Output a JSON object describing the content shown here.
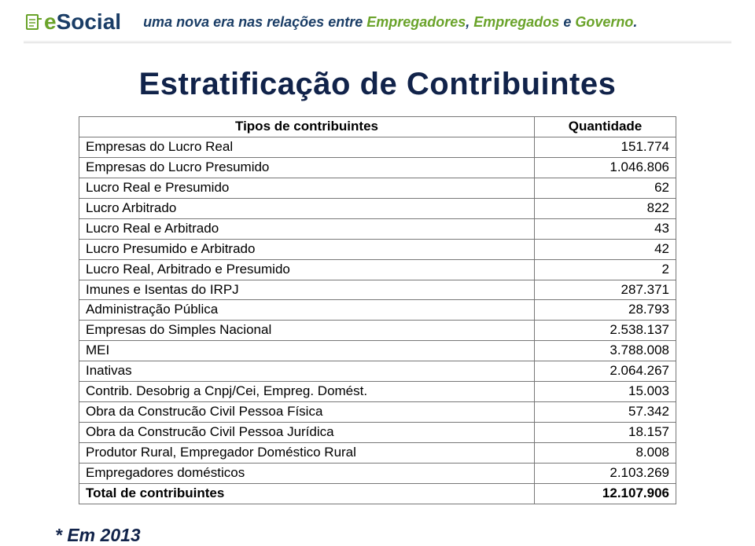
{
  "colors": {
    "brand_green": "#6aa32a",
    "brand_navy": "#1a3d66",
    "tagline_text": "#1a3d66",
    "tagline_highlight": "#6aa32a",
    "title_color": "#11234a",
    "table_text": "#333333",
    "border_color": "#777777",
    "footnote_color": "#11234a"
  },
  "logo": {
    "e": "e",
    "social": "Social"
  },
  "tagline": {
    "part1": "uma nova era nas relações entre ",
    "h1": "Empregadores",
    "sep1": ", ",
    "h2": "Empregados",
    "sep2": " e ",
    "h3": "Governo",
    "end": "."
  },
  "title": "Estratificação de Contribuintes",
  "table": {
    "header_type": "Tipos de contribuintes",
    "header_qty": "Quantidade",
    "rows": [
      {
        "label": "Empresas do Lucro Real",
        "value": "151.774"
      },
      {
        "label": "Empresas do Lucro Presumido",
        "value": "1.046.806"
      },
      {
        "label": "Lucro Real e Presumido",
        "value": "62"
      },
      {
        "label": "Lucro Arbitrado",
        "value": "822"
      },
      {
        "label": "Lucro Real e Arbitrado",
        "value": "43"
      },
      {
        "label": "Lucro Presumido e Arbitrado",
        "value": "42"
      },
      {
        "label": "Lucro Real, Arbitrado e Presumido",
        "value": "2"
      },
      {
        "label": "Imunes e Isentas do IRPJ",
        "value": "287.371"
      },
      {
        "label": "Administração Pública",
        "value": "28.793"
      },
      {
        "label": "Empresas do Simples Nacional",
        "value": "2.538.137"
      },
      {
        "label": "MEI",
        "value": "3.788.008"
      },
      {
        "label": "Inativas",
        "value": "2.064.267"
      },
      {
        "label": "Contrib. Desobrig a Cnpj/Cei, Empreg. Domést.",
        "value": "15.003"
      },
      {
        "label": "Obra da Construcão Civil Pessoa Física",
        "value": "57.342"
      },
      {
        "label": "Obra da Construcão Civil Pessoa Jurídica",
        "value": "18.157"
      },
      {
        "label": "Produtor Rural, Empregador Doméstico Rural",
        "value": "8.008"
      },
      {
        "label": "Empregadores domésticos",
        "value": "2.103.269"
      }
    ],
    "total_label": "Total de contribuintes",
    "total_value": "12.107.906"
  },
  "footnote": "* Em 2013"
}
